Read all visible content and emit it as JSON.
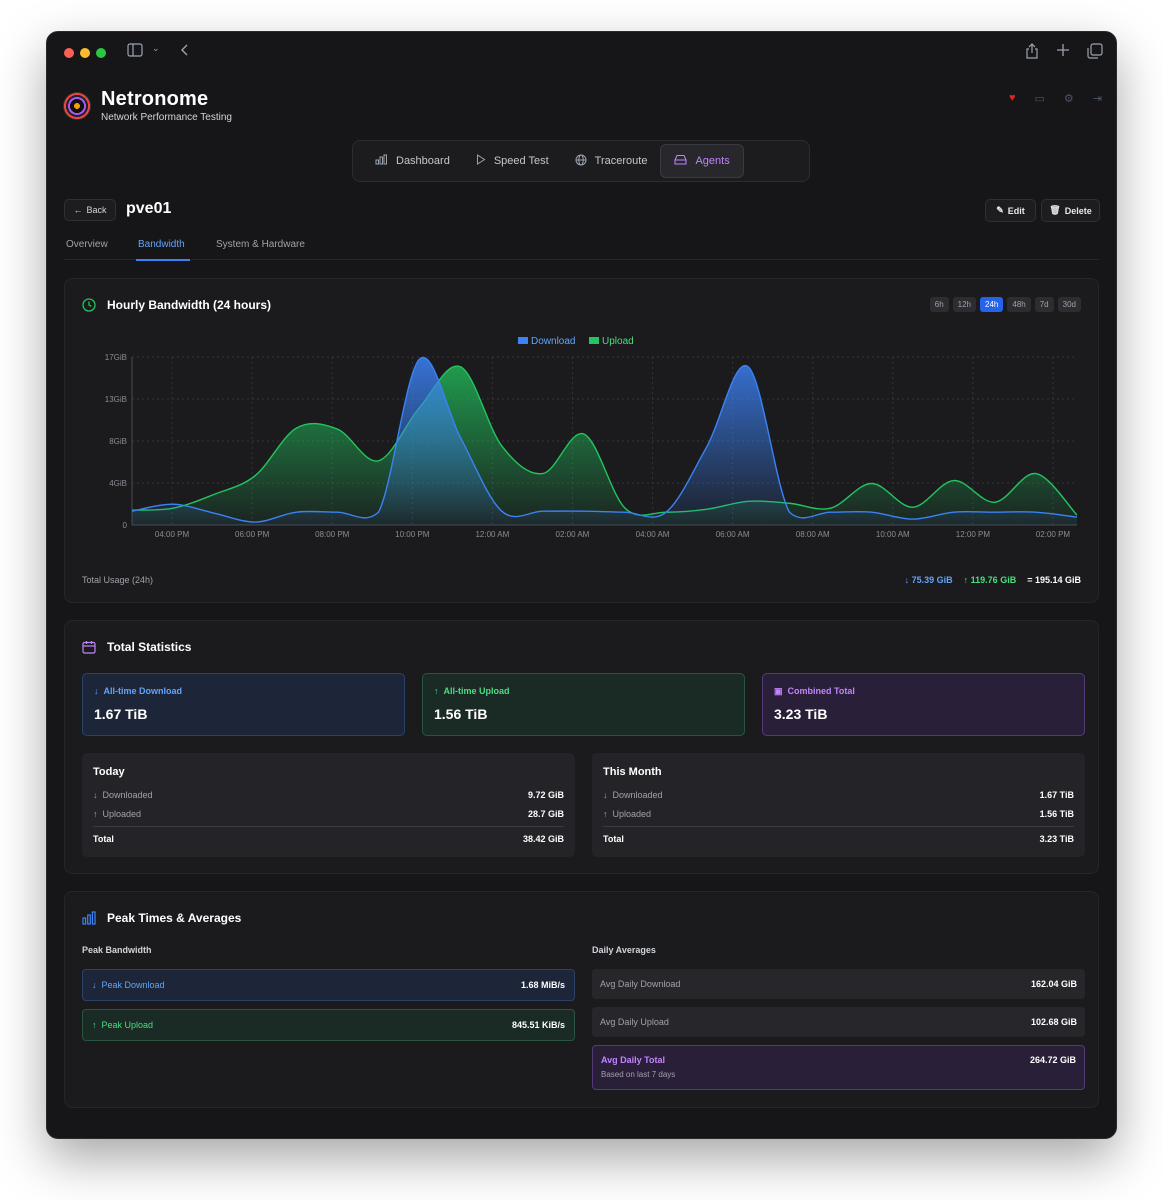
{
  "app": {
    "title": "Netronome",
    "subtitle": "Network Performance Testing"
  },
  "nav": [
    {
      "label": "Dashboard",
      "icon": "bar-chart-icon"
    },
    {
      "label": "Speed Test",
      "icon": "play-icon"
    },
    {
      "label": "Traceroute",
      "icon": "globe-icon"
    },
    {
      "label": "Agents",
      "icon": "server-icon",
      "active": true
    }
  ],
  "agent": {
    "back_label": "Back",
    "name": "pve01",
    "edit_label": "Edit",
    "delete_label": "Delete"
  },
  "tabs": [
    "Overview",
    "Bandwidth",
    "System & Hardware"
  ],
  "hourly": {
    "title": "Hourly Bandwidth (24 hours)",
    "ranges": [
      "6h",
      "12h",
      "24h",
      "48h",
      "7d",
      "30d"
    ],
    "active_range": "24h",
    "legend_download": "Download",
    "legend_upload": "Upload",
    "total_label": "Total Usage (24h)",
    "total_download": "↓ 75.39 GiB",
    "total_upload": "↑ 119.76 GiB",
    "total_combined": "= 195.14 GiB"
  },
  "chart_data": {
    "type": "area",
    "title": "Hourly Bandwidth (24 hours)",
    "y_ticks": [
      "0",
      "4GiB",
      "8GiB",
      "13GiB",
      "17GiB"
    ],
    "ylim": [
      0,
      17
    ],
    "x_ticks": [
      "04:00 PM",
      "06:00 PM",
      "08:00 PM",
      "10:00 PM",
      "12:00 AM",
      "02:00 AM",
      "04:00 AM",
      "06:00 AM",
      "08:00 AM",
      "10:00 AM",
      "12:00 PM",
      "02:00 PM"
    ],
    "x": [
      0,
      1,
      2,
      3,
      4,
      5,
      6,
      7,
      8,
      9,
      10,
      11,
      12,
      13,
      14,
      15,
      16,
      17,
      18,
      19,
      20,
      21,
      22,
      23
    ],
    "series": [
      {
        "name": "Download",
        "color": "#3b82f6",
        "values": [
          1.4,
          2.1,
          1.2,
          0.3,
          1.3,
          1.3,
          1.3,
          16.8,
          8.8,
          1.4,
          1.4,
          1.4,
          1.3,
          1.3,
          8.0,
          16.0,
          1.3,
          1.3,
          1.3,
          0.6,
          1.3,
          1.3,
          1.3,
          0.8
        ]
      },
      {
        "name": "Upload",
        "color": "#22c55e",
        "values": [
          1.5,
          1.7,
          3.1,
          5.0,
          9.8,
          9.7,
          6.5,
          11.9,
          16.0,
          8.0,
          5.2,
          9.2,
          1.7,
          1.3,
          1.6,
          2.4,
          2.2,
          1.7,
          4.2,
          1.8,
          4.5,
          2.3,
          5.2,
          1.0
        ]
      }
    ]
  },
  "totals": {
    "title": "Total Statistics",
    "all_download_label": "All-time Download",
    "all_download_value": "1.67 TiB",
    "all_upload_label": "All-time Upload",
    "all_upload_value": "1.56 TiB",
    "combined_label": "Combined Total",
    "combined_value": "3.23 TiB",
    "today": {
      "title": "Today",
      "downloaded_label": "Downloaded",
      "downloaded": "9.72 GiB",
      "uploaded_label": "Uploaded",
      "uploaded": "28.7 GiB",
      "total_label": "Total",
      "total": "38.42 GiB"
    },
    "month": {
      "title": "This Month",
      "downloaded_label": "Downloaded",
      "downloaded": "1.67 TiB",
      "uploaded_label": "Uploaded",
      "uploaded": "1.56 TiB",
      "total_label": "Total",
      "total": "3.23 TiB"
    }
  },
  "peak": {
    "title": "Peak Times & Averages",
    "peak_label": "Peak Bandwidth",
    "peak_download_label": "Peak Download",
    "peak_download": "1.68 MiB/s",
    "peak_upload_label": "Peak Upload",
    "peak_upload": "845.51 KiB/s",
    "avg_label": "Daily Averages",
    "avg_download_label": "Avg Daily Download",
    "avg_download": "162.04 GiB",
    "avg_upload_label": "Avg Daily Upload",
    "avg_upload": "102.68 GiB",
    "avg_total_label": "Avg Daily Total",
    "avg_total_note": "Based on last 7 days",
    "avg_total": "264.72 GiB"
  },
  "colors": {
    "download": "#3b82f6",
    "upload": "#22c55e",
    "accent": "#c084fc"
  }
}
